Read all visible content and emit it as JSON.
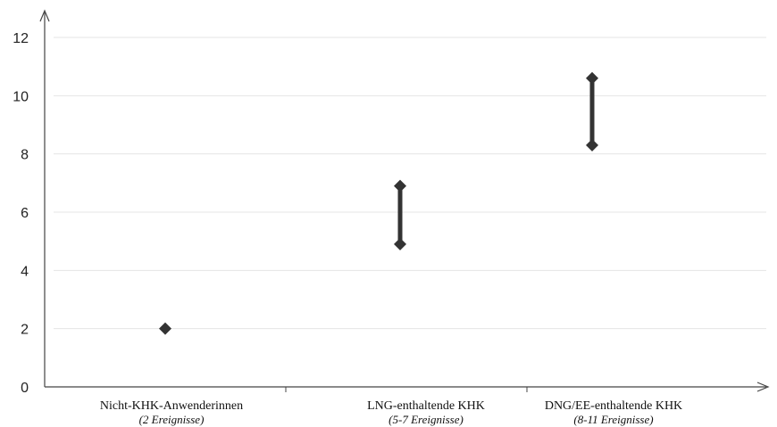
{
  "chart_data": {
    "type": "range",
    "categories": [
      {
        "label": "Nicht-KHK-Anwenderinnen",
        "sublabel": "(2 Ereignisse)"
      },
      {
        "label": "LNG-enthaltende KHK",
        "sublabel": "(5-7 Ereignisse)"
      },
      {
        "label": "DNG/EE-enthaltende KHK",
        "sublabel": "(8-11 Ereignisse)"
      }
    ],
    "ranges": [
      {
        "low": 2,
        "high": 2
      },
      {
        "low": 4.9,
        "high": 6.9
      },
      {
        "low": 8.3,
        "high": 10.6
      }
    ],
    "ylim": [
      0,
      12
    ],
    "yticks": [
      "0",
      "2",
      "4",
      "6",
      "8",
      "10",
      "12"
    ],
    "grid": true,
    "xlabel": "",
    "ylabel": "",
    "colors": {
      "marker": "#333333",
      "grid": "#e4e4e4",
      "axis": "#444444"
    }
  }
}
